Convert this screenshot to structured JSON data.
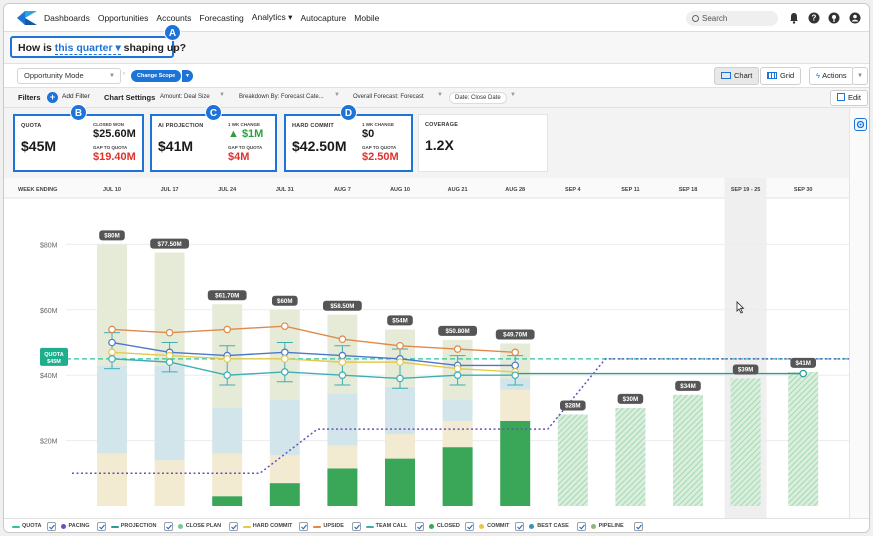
{
  "nav": {
    "items": [
      "Dashboards",
      "Opportunities",
      "Accounts",
      "Forecasting",
      "Analytics ▾",
      "Autocapture",
      "Mobile"
    ],
    "search_placeholder": "Search"
  },
  "header": {
    "question_prefix": "How is",
    "question_link": "this quarter",
    "question_caret": "▾",
    "question_suffix": "shaping up?",
    "badges": [
      "A",
      "B",
      "C",
      "D"
    ]
  },
  "mode": {
    "select_value": "Opportunity Mode",
    "scope_button": "Change Scope",
    "chart_button": "Chart",
    "grid_button": "Grid",
    "actions_button": "Actions"
  },
  "filters": {
    "label": "Filters",
    "add_filter": "Add Filter",
    "chart_settings": "Chart Settings",
    "amount": "Amount: Deal Size",
    "breakdown": "Breakdown By: Forecast Cate...",
    "overall": "Overall Forecast: Forecast",
    "date": "Date: Close Date",
    "edit": "Edit"
  },
  "cards": {
    "quota": {
      "label": "QUOTA",
      "value": "$45M",
      "sub1_label": "CLOSED WON",
      "sub1_value": "$25.60M",
      "sub2_label": "GAP TO QUOTA",
      "sub2_value": "$19.40M"
    },
    "ai": {
      "label": "AI PROJECTION",
      "value": "$41M",
      "sub1_label": "1 WK CHANGE",
      "sub1_value": "▲ $1M",
      "sub2_label": "GAP TO QUOTA",
      "sub2_value": "$4M"
    },
    "hard": {
      "label": "HARD COMMIT",
      "value": "$42.50M",
      "sub1_label": "1 WK CHANGE",
      "sub1_value": "$0",
      "sub2_label": "GAP TO QUOTA",
      "sub2_value": "$2.50M"
    },
    "coverage": {
      "label": "COVERAGE",
      "value": "1.2X"
    }
  },
  "chart_data": {
    "type": "bar",
    "xlabel": "WEEK ENDING",
    "categories": [
      "JUL 10",
      "JUL 17",
      "JUL 24",
      "JUL 31",
      "AUG 7",
      "AUG 10",
      "AUG 21",
      "AUG 28",
      "SEP 4",
      "SEP 11",
      "SEP 18",
      "SEP 19 - 25",
      "SEP 30"
    ],
    "highlight_category": "SEP 19 - 25",
    "yticks": [
      {
        "value": 20,
        "label": "$20M"
      },
      {
        "value": 40,
        "label": "$40M"
      },
      {
        "value": 60,
        "label": "$60M"
      },
      {
        "value": 80,
        "label": "$80M"
      }
    ],
    "ylim": [
      0,
      100
    ],
    "quota_value": 45,
    "quota_label_1": "QUOTA",
    "quota_label_2": "$45M",
    "totals": [
      80,
      77.5,
      61.7,
      60,
      58.5,
      54,
      50.8,
      49.7,
      28,
      30,
      34,
      39,
      41
    ],
    "total_labels": [
      "$80M",
      "$77.50M",
      "$61.70M",
      "$60M",
      "$58.50M",
      "$54M",
      "$50.80M",
      "$49.70M",
      "$28M",
      "$30M",
      "$34M",
      "$39M",
      "$41M"
    ],
    "series": [
      {
        "name": "CLOSED",
        "color": "#3aa657",
        "values": [
          0,
          0,
          3,
          7,
          11.5,
          14.5,
          18,
          26,
          0,
          0,
          0,
          0,
          0
        ]
      },
      {
        "name": "COMMIT",
        "color": "#f2ead1",
        "values": [
          16,
          14,
          13,
          8.5,
          7,
          7.5,
          8,
          9.5,
          0,
          0,
          0,
          0,
          0
        ]
      },
      {
        "name": "BEST CASE",
        "color": "#d2e5ea",
        "values": [
          27,
          29,
          14,
          17,
          16,
          14.5,
          6.5,
          3.5,
          0,
          0,
          0,
          0,
          0
        ]
      },
      {
        "name": "PIPELINE",
        "color": "#e6ebd8",
        "values": [
          37,
          34.5,
          31.7,
          27.5,
          24,
          17.5,
          18.3,
          10.7,
          0,
          0,
          0,
          0,
          0
        ]
      },
      {
        "name": "PROJECTION",
        "color": "#96d6a6",
        "values": [
          0,
          0,
          0,
          0,
          0,
          0,
          0,
          0,
          28,
          30,
          34,
          39,
          41
        ]
      }
    ],
    "lines": [
      {
        "name": "UPSIDE",
        "color": "#e0894a",
        "values": [
          54,
          53,
          54,
          55,
          51,
          49,
          48,
          47
        ]
      },
      {
        "name": "BEST CASE",
        "color": "#4a78c9",
        "values": [
          50,
          47,
          46,
          47,
          46,
          45,
          43,
          43
        ]
      },
      {
        "name": "COMMIT",
        "color": "#e6c84b",
        "values": [
          47,
          46,
          45,
          45,
          44,
          44,
          42,
          41
        ]
      },
      {
        "name": "TEAM CALL",
        "color": "#3eaeb5",
        "values": [
          45,
          44,
          40,
          41,
          40,
          39,
          40,
          40
        ]
      }
    ],
    "projection_line": {
      "name": "PROJECTION",
      "color": "#2a9a9a",
      "start_index": 8,
      "end_index": 12,
      "value": 40.5
    },
    "pacing": {
      "name": "PACING",
      "color": "#6b4fbd",
      "values": [
        10,
        10,
        10,
        10,
        23.5,
        23.5,
        23.5,
        23.5,
        23.5,
        45,
        45,
        45,
        45
      ]
    }
  },
  "legend": [
    "QUOTA",
    "PACING",
    "PROJECTION",
    "CLOSE PLAN",
    "HARD COMMIT",
    "UPSIDE",
    "TEAM CALL",
    "CLOSED",
    "COMMIT",
    "BEST CASE",
    "PIPELINE"
  ],
  "colors": {
    "accent": "#1d73d8",
    "red": "#e0322c",
    "green": "#2e9e3e",
    "quota": "#2ec4a0"
  }
}
